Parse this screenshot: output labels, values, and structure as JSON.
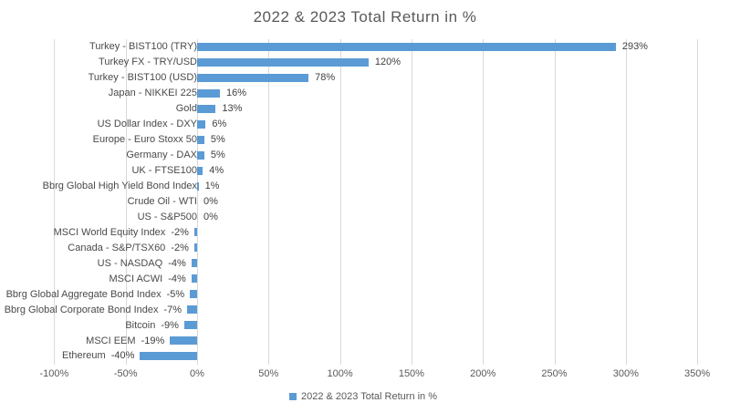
{
  "chart_data": {
    "type": "bar",
    "orientation": "horizontal",
    "title": "2022 & 2023 Total Return in %",
    "legend": [
      "2022 & 2023 Total Return in %"
    ],
    "legend_position": "bottom",
    "categories": [
      "Turkey - BIST100 (TRY)",
      "Turkey FX - TRY/USD",
      "Turkey - BIST100 (USD)",
      "Japan - NIKKEI 225",
      "Gold",
      "US Dollar Index - DXY",
      "Europe - Euro Stoxx 50",
      "Germany - DAX",
      "UK - FTSE100",
      "Bbrg Global High Yield Bond Index",
      "Crude Oil - WTI",
      "US - S&P500",
      "MSCI World Equity Index",
      "Canada - S&P/TSX60",
      "US - NASDAQ",
      "MSCI ACWI",
      "Bbrg Global Aggregate Bond Index",
      "Bbrg Global Corporate Bond Index",
      "Bitcoin",
      "MSCI EEM",
      "Ethereum"
    ],
    "values": [
      293,
      120,
      78,
      16,
      13,
      6,
      5,
      5,
      4,
      1,
      0,
      0,
      -2,
      -2,
      -4,
      -4,
      -5,
      -7,
      -9,
      -19,
      -40
    ],
    "value_labels": [
      "293%",
      "120%",
      "78%",
      "16%",
      "13%",
      "6%",
      "5%",
      "5%",
      "4%",
      "1%",
      "0%",
      "0%",
      "-2%",
      "-2%",
      "-4%",
      "-4%",
      "-5%",
      "-7%",
      "-9%",
      "-19%",
      "-40%"
    ],
    "x_tick_labels": [
      "-100%",
      "-50%",
      "0%",
      "50%",
      "100%",
      "150%",
      "200%",
      "250%",
      "300%",
      "350%"
    ],
    "x_tick_values": [
      -100,
      -50,
      0,
      50,
      100,
      150,
      200,
      250,
      300,
      350
    ],
    "xlim": [
      -100,
      350
    ],
    "grid": true,
    "colors": {
      "bar": "#5b9bd5",
      "gridline": "#d9d9d9",
      "title_text": "#595959",
      "axis_text": "#595959",
      "label_text": "#404040",
      "background": "#ffffff"
    }
  }
}
